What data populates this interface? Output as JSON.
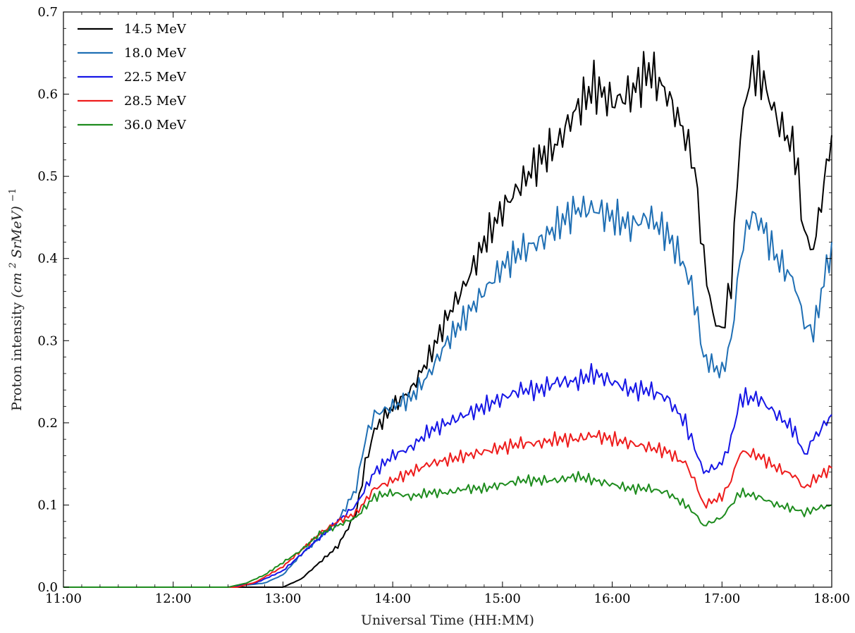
{
  "chart_data": {
    "type": "line",
    "title": "",
    "xlabel": "Universal Time (HH:MM)",
    "ylabel": "Proton intensity",
    "ylabel_unit_base": "(cm",
    "ylabel_unit_exp": "2",
    "ylabel_unit_mid": "SrMeV)",
    "ylabel_unit_power": "−1",
    "xlim": [
      "11:00",
      "18:00"
    ],
    "ylim": [
      0,
      0.7
    ],
    "x_ticks": [
      "11:00",
      "12:00",
      "13:00",
      "14:00",
      "15:00",
      "16:00",
      "17:00",
      "18:00"
    ],
    "y_ticks": [
      "0.0",
      "0.1",
      "0.2",
      "0.3",
      "0.4",
      "0.5",
      "0.6",
      "0.7"
    ],
    "grid": false,
    "legend_position": "top-left",
    "series": [
      {
        "name": "14.5 MeV",
        "color": "#000000",
        "points": [
          [
            "11:00",
            0
          ],
          [
            "12:30",
            0
          ],
          [
            "13:00",
            0.0
          ],
          [
            "13:10",
            0.01
          ],
          [
            "13:20",
            0.03
          ],
          [
            "13:30",
            0.05
          ],
          [
            "13:40",
            0.09
          ],
          [
            "13:45",
            0.15
          ],
          [
            "13:50",
            0.19
          ],
          [
            "14:00",
            0.22
          ],
          [
            "14:10",
            0.24
          ],
          [
            "14:20",
            0.28
          ],
          [
            "14:30",
            0.33
          ],
          [
            "14:40",
            0.37
          ],
          [
            "14:50",
            0.42
          ],
          [
            "15:00",
            0.46
          ],
          [
            "15:10",
            0.49
          ],
          [
            "15:20",
            0.52
          ],
          [
            "15:30",
            0.54
          ],
          [
            "15:40",
            0.58
          ],
          [
            "15:50",
            0.61
          ],
          [
            "16:00",
            0.59
          ],
          [
            "16:10",
            0.6
          ],
          [
            "16:20",
            0.63
          ],
          [
            "16:30",
            0.6
          ],
          [
            "16:40",
            0.55
          ],
          [
            "16:45",
            0.51
          ],
          [
            "16:50",
            0.4
          ],
          [
            "16:55",
            0.33
          ],
          [
            "17:00",
            0.31
          ],
          [
            "17:05",
            0.37
          ],
          [
            "17:10",
            0.55
          ],
          [
            "17:15",
            0.62
          ],
          [
            "17:20",
            0.63
          ],
          [
            "17:30",
            0.57
          ],
          [
            "17:40",
            0.53
          ],
          [
            "17:45",
            0.43
          ],
          [
            "17:50",
            0.41
          ],
          [
            "18:00",
            0.55
          ]
        ]
      },
      {
        "name": "18.0 MeV",
        "color": "#1f6fb4",
        "points": [
          [
            "11:00",
            0
          ],
          [
            "12:30",
            0
          ],
          [
            "12:50",
            0.005
          ],
          [
            "13:00",
            0.015
          ],
          [
            "13:10",
            0.04
          ],
          [
            "13:20",
            0.06
          ],
          [
            "13:30",
            0.08
          ],
          [
            "13:40",
            0.12
          ],
          [
            "13:45",
            0.18
          ],
          [
            "13:50",
            0.21
          ],
          [
            "14:00",
            0.22
          ],
          [
            "14:10",
            0.23
          ],
          [
            "14:20",
            0.26
          ],
          [
            "14:30",
            0.3
          ],
          [
            "14:40",
            0.33
          ],
          [
            "14:50",
            0.36
          ],
          [
            "15:00",
            0.39
          ],
          [
            "15:10",
            0.41
          ],
          [
            "15:20",
            0.42
          ],
          [
            "15:30",
            0.44
          ],
          [
            "15:40",
            0.46
          ],
          [
            "15:50",
            0.46
          ],
          [
            "16:00",
            0.45
          ],
          [
            "16:10",
            0.44
          ],
          [
            "16:20",
            0.45
          ],
          [
            "16:30",
            0.43
          ],
          [
            "16:40",
            0.39
          ],
          [
            "16:45",
            0.35
          ],
          [
            "16:50",
            0.28
          ],
          [
            "17:00",
            0.26
          ],
          [
            "17:05",
            0.3
          ],
          [
            "17:10",
            0.4
          ],
          [
            "17:15",
            0.45
          ],
          [
            "17:20",
            0.45
          ],
          [
            "17:30",
            0.4
          ],
          [
            "17:40",
            0.37
          ],
          [
            "17:45",
            0.32
          ],
          [
            "17:50",
            0.31
          ],
          [
            "18:00",
            0.42
          ]
        ]
      },
      {
        "name": "22.5 MeV",
        "color": "#1616e6",
        "points": [
          [
            "11:00",
            0
          ],
          [
            "12:30",
            0
          ],
          [
            "12:45",
            0.005
          ],
          [
            "13:00",
            0.02
          ],
          [
            "13:10",
            0.04
          ],
          [
            "13:20",
            0.06
          ],
          [
            "13:30",
            0.08
          ],
          [
            "13:40",
            0.1
          ],
          [
            "13:50",
            0.14
          ],
          [
            "14:00",
            0.16
          ],
          [
            "14:10",
            0.17
          ],
          [
            "14:20",
            0.19
          ],
          [
            "14:30",
            0.2
          ],
          [
            "14:40",
            0.21
          ],
          [
            "14:50",
            0.22
          ],
          [
            "15:00",
            0.23
          ],
          [
            "15:10",
            0.24
          ],
          [
            "15:20",
            0.24
          ],
          [
            "15:30",
            0.25
          ],
          [
            "15:40",
            0.25
          ],
          [
            "15:50",
            0.26
          ],
          [
            "16:00",
            0.25
          ],
          [
            "16:10",
            0.24
          ],
          [
            "16:20",
            0.24
          ],
          [
            "16:30",
            0.23
          ],
          [
            "16:40",
            0.2
          ],
          [
            "16:45",
            0.17
          ],
          [
            "16:50",
            0.14
          ],
          [
            "17:00",
            0.15
          ],
          [
            "17:05",
            0.18
          ],
          [
            "17:10",
            0.23
          ],
          [
            "17:20",
            0.23
          ],
          [
            "17:30",
            0.21
          ],
          [
            "17:40",
            0.19
          ],
          [
            "17:45",
            0.16
          ],
          [
            "17:50",
            0.18
          ],
          [
            "18:00",
            0.21
          ]
        ]
      },
      {
        "name": "28.5 MeV",
        "color": "#ee1c1c",
        "points": [
          [
            "11:00",
            0
          ],
          [
            "12:35",
            0
          ],
          [
            "12:45",
            0.006
          ],
          [
            "13:00",
            0.025
          ],
          [
            "13:10",
            0.045
          ],
          [
            "13:20",
            0.065
          ],
          [
            "13:30",
            0.08
          ],
          [
            "13:40",
            0.09
          ],
          [
            "13:50",
            0.12
          ],
          [
            "14:00",
            0.13
          ],
          [
            "14:10",
            0.14
          ],
          [
            "14:20",
            0.15
          ],
          [
            "14:30",
            0.155
          ],
          [
            "14:40",
            0.16
          ],
          [
            "14:50",
            0.165
          ],
          [
            "15:00",
            0.17
          ],
          [
            "15:10",
            0.175
          ],
          [
            "15:20",
            0.175
          ],
          [
            "15:30",
            0.18
          ],
          [
            "15:40",
            0.18
          ],
          [
            "15:50",
            0.185
          ],
          [
            "16:00",
            0.18
          ],
          [
            "16:10",
            0.175
          ],
          [
            "16:20",
            0.17
          ],
          [
            "16:30",
            0.165
          ],
          [
            "16:40",
            0.15
          ],
          [
            "16:45",
            0.13
          ],
          [
            "16:50",
            0.1
          ],
          [
            "17:00",
            0.11
          ],
          [
            "17:05",
            0.13
          ],
          [
            "17:10",
            0.165
          ],
          [
            "17:20",
            0.16
          ],
          [
            "17:30",
            0.145
          ],
          [
            "17:40",
            0.135
          ],
          [
            "17:45",
            0.12
          ],
          [
            "17:50",
            0.13
          ],
          [
            "18:00",
            0.145
          ]
        ]
      },
      {
        "name": "36.0 MeV",
        "color": "#1e8c1e",
        "points": [
          [
            "11:00",
            0
          ],
          [
            "12:30",
            0
          ],
          [
            "12:40",
            0.005
          ],
          [
            "12:50",
            0.015
          ],
          [
            "13:00",
            0.03
          ],
          [
            "13:10",
            0.045
          ],
          [
            "13:20",
            0.065
          ],
          [
            "13:30",
            0.075
          ],
          [
            "13:40",
            0.085
          ],
          [
            "13:50",
            0.11
          ],
          [
            "14:00",
            0.115
          ],
          [
            "14:10",
            0.11
          ],
          [
            "14:20",
            0.115
          ],
          [
            "14:30",
            0.115
          ],
          [
            "14:40",
            0.12
          ],
          [
            "14:50",
            0.12
          ],
          [
            "15:00",
            0.125
          ],
          [
            "15:10",
            0.13
          ],
          [
            "15:20",
            0.13
          ],
          [
            "15:30",
            0.13
          ],
          [
            "15:40",
            0.135
          ],
          [
            "15:50",
            0.13
          ],
          [
            "16:00",
            0.125
          ],
          [
            "16:10",
            0.12
          ],
          [
            "16:20",
            0.12
          ],
          [
            "16:30",
            0.115
          ],
          [
            "16:40",
            0.1
          ],
          [
            "16:45",
            0.09
          ],
          [
            "16:50",
            0.075
          ],
          [
            "17:00",
            0.085
          ],
          [
            "17:05",
            0.1
          ],
          [
            "17:10",
            0.115
          ],
          [
            "17:20",
            0.11
          ],
          [
            "17:30",
            0.1
          ],
          [
            "17:40",
            0.095
          ],
          [
            "17:45",
            0.09
          ],
          [
            "17:50",
            0.095
          ],
          [
            "18:00",
            0.1
          ]
        ]
      }
    ]
  }
}
